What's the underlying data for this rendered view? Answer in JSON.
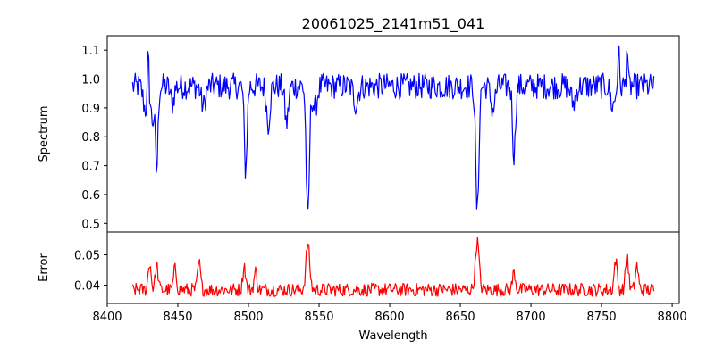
{
  "chart_data": {
    "type": "line",
    "title": "20061025_2141m51_041",
    "xlabel": "Wavelength",
    "xlim": [
      8400,
      8805
    ],
    "xticks": [
      8400,
      8450,
      8500,
      8550,
      8600,
      8650,
      8700,
      8750,
      8800
    ],
    "x_start": 8418,
    "x_end": 8787,
    "panels": [
      {
        "name": "spectrum",
        "ylabel": "Spectrum",
        "ylim": [
          0.47,
          1.15
        ],
        "yticks": [
          "0.5",
          "0.6",
          "0.7",
          "0.8",
          "0.9",
          "1.0",
          "1.1"
        ],
        "color": "#0000ff",
        "baseline": 0.975,
        "noise": 0.045,
        "features": [
          {
            "x": 8427,
            "depth": 0.08,
            "width": 1.5
          },
          {
            "x": 8432,
            "depth": 0.12,
            "width": 1.2
          },
          {
            "x": 8435,
            "depth": 0.29,
            "width": 0.9
          },
          {
            "x": 8446,
            "depth": 0.06,
            "width": 1.2
          },
          {
            "x": 8468,
            "depth": 0.07,
            "width": 1.5
          },
          {
            "x": 8498,
            "depth": 0.29,
            "width": 1.0
          },
          {
            "x": 8514,
            "depth": 0.13,
            "width": 1.2
          },
          {
            "x": 8527,
            "depth": 0.13,
            "width": 1.2
          },
          {
            "x": 8542,
            "depth": 0.47,
            "width": 1.1
          },
          {
            "x": 8547,
            "depth": 0.08,
            "width": 1.5
          },
          {
            "x": 8576,
            "depth": 0.06,
            "width": 1.5
          },
          {
            "x": 8662,
            "depth": 0.44,
            "width": 1.1
          },
          {
            "x": 8673,
            "depth": 0.08,
            "width": 1.5
          },
          {
            "x": 8688,
            "depth": 0.24,
            "width": 1.0
          },
          {
            "x": 8730,
            "depth": 0.06,
            "width": 1.5
          },
          {
            "x": 8758,
            "depth": 0.07,
            "width": 1.5
          }
        ],
        "spikes": [
          {
            "x": 8429,
            "height": 0.14
          },
          {
            "x": 8762,
            "height": 0.14
          },
          {
            "x": 8768,
            "height": 0.15
          }
        ]
      },
      {
        "name": "error",
        "ylabel": "Error",
        "ylim": [
          0.034,
          0.0575
        ],
        "yticks": [
          "0.04",
          "0.05"
        ],
        "color": "#ff0000",
        "baseline": 0.0385,
        "noise": 0.0022,
        "features": [
          {
            "x": 8430,
            "depth": -0.009,
            "width": 1.0
          },
          {
            "x": 8435,
            "depth": -0.008,
            "width": 1.0
          },
          {
            "x": 8448,
            "depth": -0.007,
            "width": 1.0
          },
          {
            "x": 8465,
            "depth": -0.009,
            "width": 1.0
          },
          {
            "x": 8497,
            "depth": -0.008,
            "width": 1.0
          },
          {
            "x": 8505,
            "depth": -0.006,
            "width": 1.0
          },
          {
            "x": 8542,
            "depth": -0.015,
            "width": 1.3
          },
          {
            "x": 8662,
            "depth": -0.016,
            "width": 1.3
          },
          {
            "x": 8688,
            "depth": -0.006,
            "width": 1.0
          },
          {
            "x": 8760,
            "depth": -0.01,
            "width": 1.0
          },
          {
            "x": 8768,
            "depth": -0.012,
            "width": 1.0
          },
          {
            "x": 8775,
            "depth": -0.008,
            "width": 1.0
          }
        ],
        "spikes": []
      }
    ]
  }
}
